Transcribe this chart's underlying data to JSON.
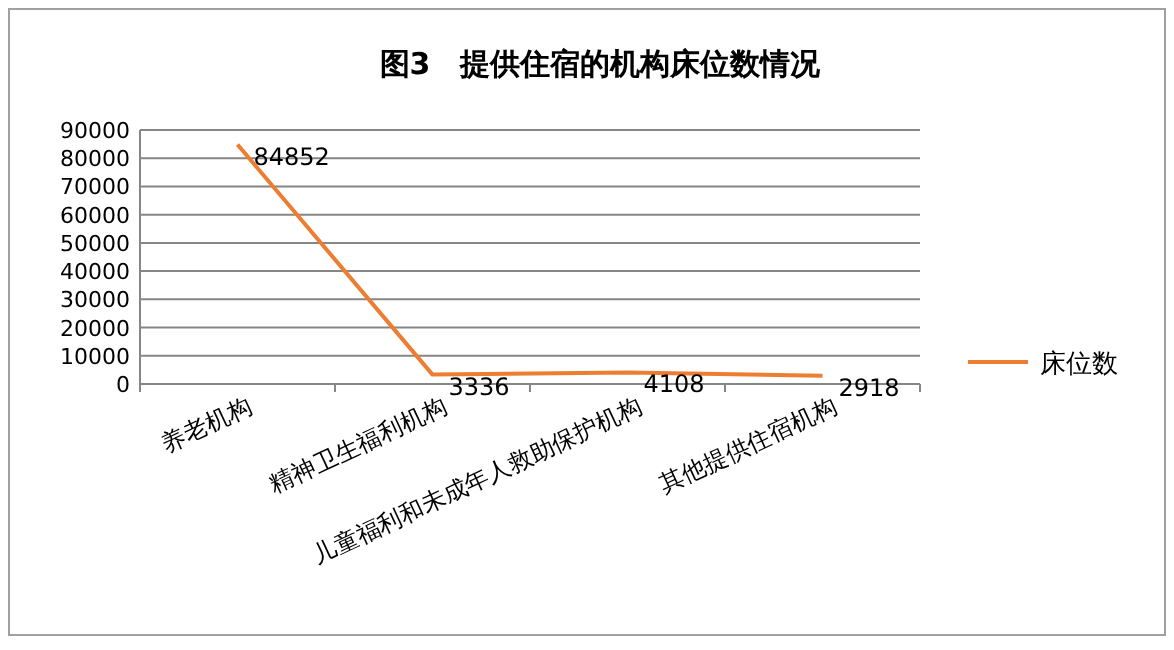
{
  "chart_data": {
    "type": "line",
    "title": "图3　提供住宿的机构床位数情况",
    "categories": [
      "养老机构",
      "精神卫生福利机构",
      "儿童福利和未成年人救助保护机构",
      "其他提供住宿机构"
    ],
    "series": [
      {
        "name": "床位数",
        "color": "#ed7d31",
        "values": [
          84852,
          3336,
          4108,
          2918
        ]
      }
    ],
    "ylim": [
      0,
      90000
    ],
    "yticks": [
      0,
      10000,
      20000,
      30000,
      40000,
      50000,
      60000,
      70000,
      80000,
      90000
    ],
    "grid": "y",
    "legend": "right",
    "data_labels": true,
    "marker": "none",
    "line_style": "solid"
  }
}
